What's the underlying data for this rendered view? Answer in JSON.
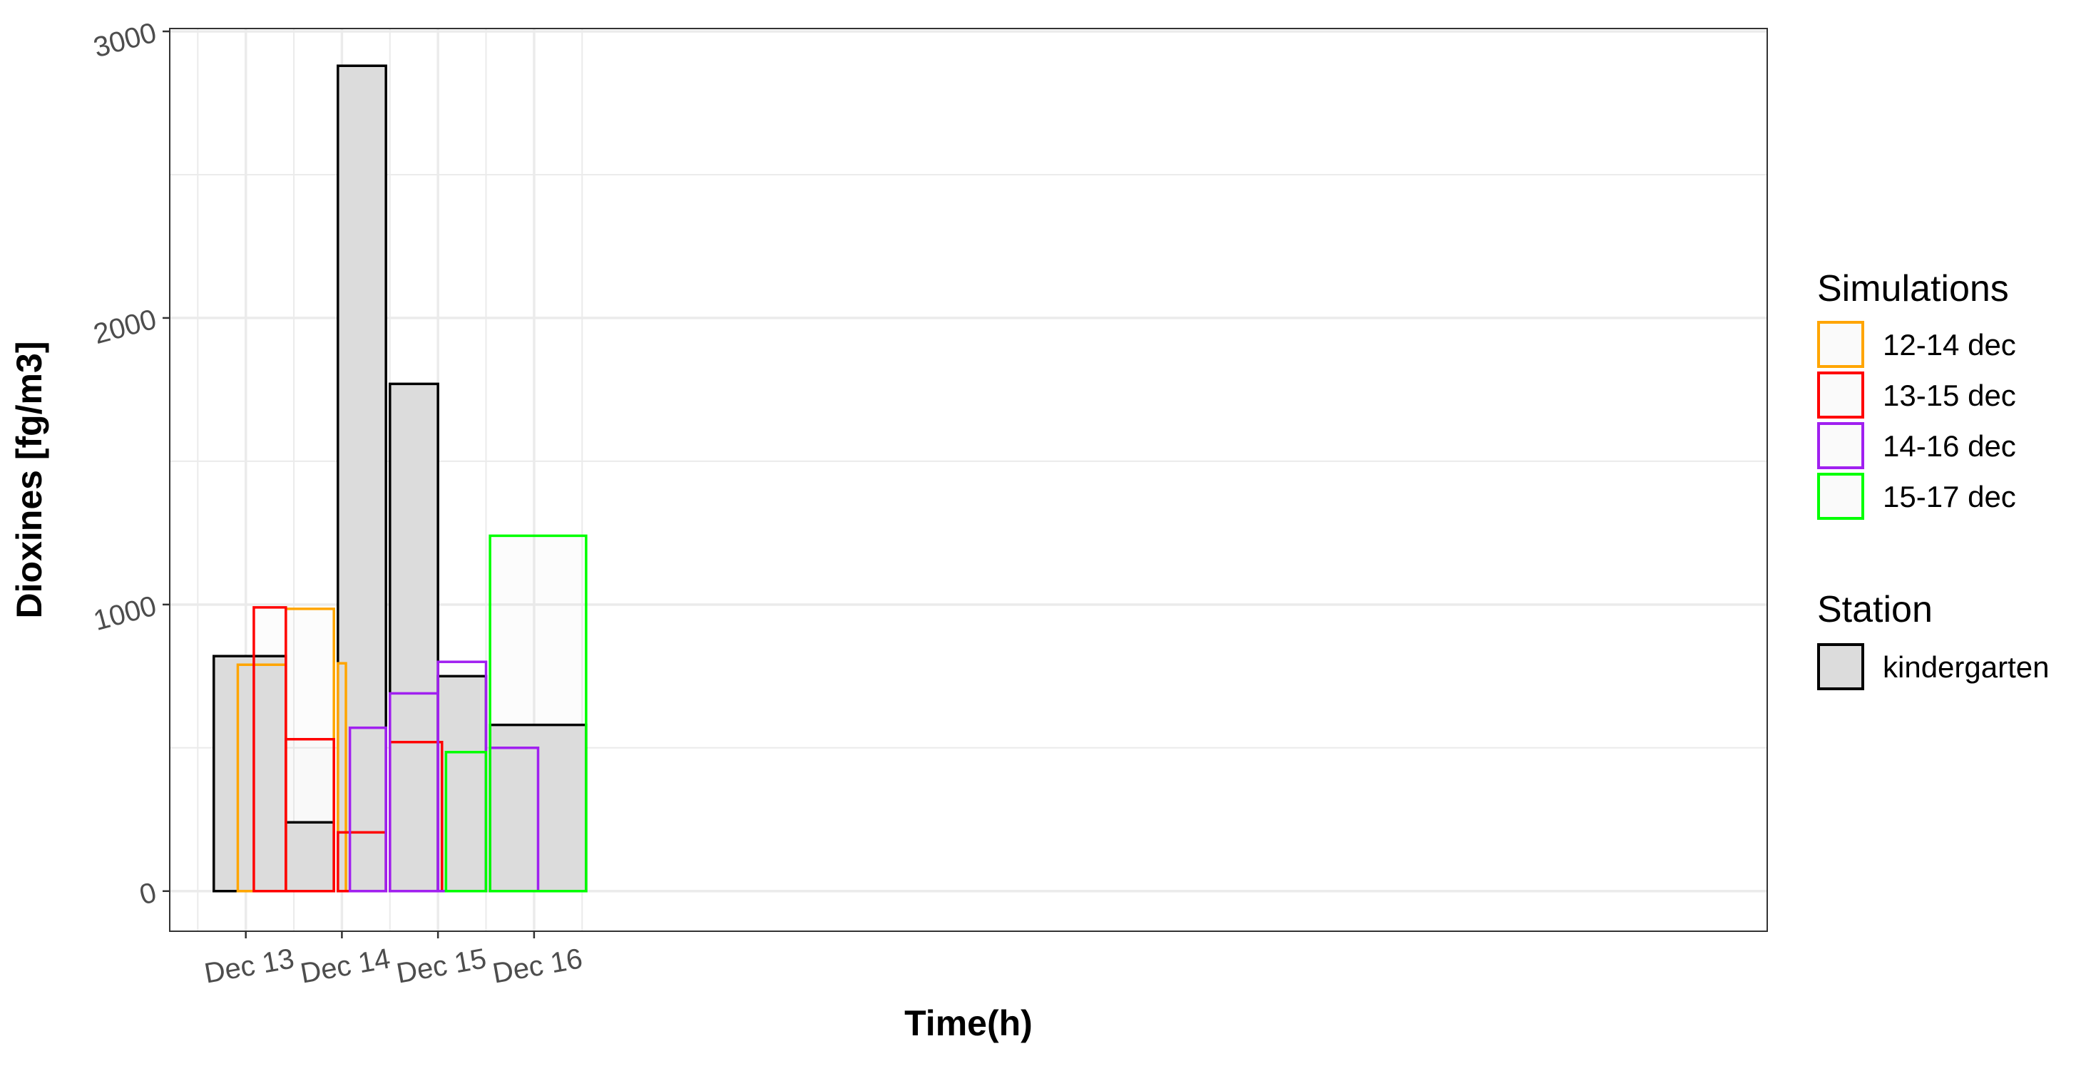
{
  "chart_data": {
    "type": "bar",
    "title": "",
    "xlabel": "Time(h)",
    "ylabel": "Dioxines [fg/m3]",
    "x_ticks": [
      "Dec 13",
      "Dec 14",
      "Dec 15",
      "Dec 16"
    ],
    "y_ticks": [
      "0",
      "1000",
      "2000",
      "3000"
    ],
    "ylim": [
      -140,
      3010
    ],
    "xlim_hours": [
      -19,
      380
    ],
    "x_origin": "Dec 13 00:00",
    "grid": true,
    "legend_position": "right",
    "legends": {
      "simulations_title": "Simulations",
      "station_title": "Station",
      "station_label": "kindergarten"
    },
    "station": {
      "name": "kindergarten",
      "fill": "#dcdcdc",
      "stroke": "#000000",
      "bars": [
        {
          "start": "Dec 12 16:00",
          "end": "Dec 13 10:00",
          "value": 820
        },
        {
          "start": "Dec 13 10:00",
          "end": "Dec 13 22:00",
          "value": 240
        },
        {
          "start": "Dec 13 23:00",
          "end": "Dec 14 11:00",
          "value": 2880
        },
        {
          "start": "Dec 14 12:00",
          "end": "Dec 15 00:00",
          "value": 1770
        },
        {
          "start": "Dec 15 00:00",
          "end": "Dec 15 12:00",
          "value": 750
        },
        {
          "start": "Dec 15 13:00",
          "end": "Dec 16 13:00",
          "value": 580
        }
      ]
    },
    "series": [
      {
        "name": "12-14 dec",
        "color": "#FFA500",
        "bars": [
          {
            "start": "Dec 12 22:00",
            "end": "Dec 13 10:00",
            "value": 790
          },
          {
            "start": "Dec 13 10:00",
            "end": "Dec 13 22:00",
            "value": 985
          },
          {
            "start": "Dec 13 23:00",
            "end": "Dec 14 01:00",
            "value": 795
          }
        ]
      },
      {
        "name": "13-15 dec",
        "color": "#FF0000",
        "bars": [
          {
            "start": "Dec 13 02:00",
            "end": "Dec 13 10:00",
            "value": 990
          },
          {
            "start": "Dec 13 10:00",
            "end": "Dec 13 22:00",
            "value": 530
          },
          {
            "start": "Dec 13 23:00",
            "end": "Dec 14 11:00",
            "value": 205
          },
          {
            "start": "Dec 14 12:00",
            "end": "Dec 15 01:00",
            "value": 520
          }
        ]
      },
      {
        "name": "14-16 dec",
        "color": "#A020F0",
        "bars": [
          {
            "start": "Dec 14 02:00",
            "end": "Dec 14 11:00",
            "value": 570
          },
          {
            "start": "Dec 14 12:00",
            "end": "Dec 15 00:00",
            "value": 690
          },
          {
            "start": "Dec 15 00:00",
            "end": "Dec 15 12:00",
            "value": 800
          },
          {
            "start": "Dec 15 13:00",
            "end": "Dec 16 01:00",
            "value": 500
          }
        ]
      },
      {
        "name": "15-17 dec",
        "color": "#00FF00",
        "bars": [
          {
            "start": "Dec 15 02:00",
            "end": "Dec 15 12:00",
            "value": 485
          },
          {
            "start": "Dec 15 13:00",
            "end": "Dec 16 13:00",
            "value": 1240
          }
        ]
      }
    ]
  }
}
